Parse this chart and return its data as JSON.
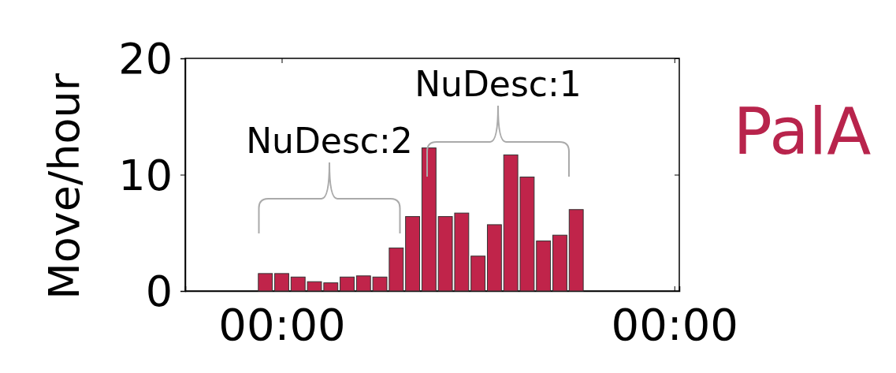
{
  "chart_data": {
    "type": "bar",
    "title": "PalA",
    "ylabel": "Move/hour",
    "x": [
      -1,
      0,
      1,
      2,
      3,
      4,
      5,
      6,
      7,
      8,
      9,
      10,
      11,
      12,
      13,
      14,
      15,
      16,
      17,
      18
    ],
    "values": [
      1.5,
      1.5,
      1.2,
      0.8,
      0.7,
      1.2,
      1.3,
      1.2,
      3.7,
      6.4,
      12.3,
      6.4,
      6.7,
      3.0,
      5.7,
      11.7,
      9.8,
      4.3,
      4.8,
      7.0
    ],
    "color": "#c0244a",
    "xlim": [
      -5.9,
      24.3
    ],
    "xticks": [
      {
        "value": 0,
        "label": "00:00"
      },
      {
        "value": 24,
        "label": "00:00"
      }
    ],
    "ylim": [
      0,
      20
    ],
    "yticks": [
      0,
      10,
      20
    ],
    "grid": false,
    "annotations": [
      "NuDesc:2",
      "NuDesc:1"
    ]
  }
}
